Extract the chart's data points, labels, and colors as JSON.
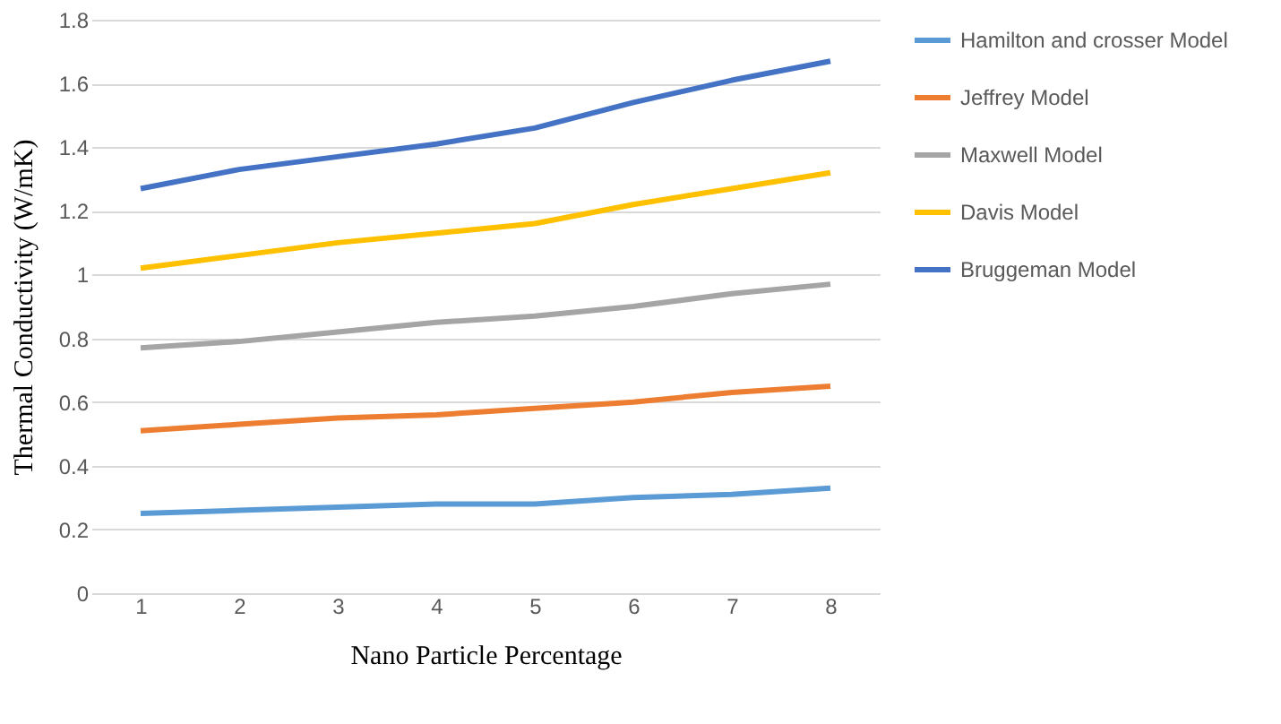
{
  "chart_data": {
    "type": "line",
    "xlabel": "Nano Particle Percentage",
    "ylabel": "Thermal Conductivity (W/mK)",
    "categories": [
      "1",
      "2",
      "3",
      "4",
      "5",
      "6",
      "7",
      "8"
    ],
    "series": [
      {
        "name": "Hamilton and crosser Model",
        "color": "#5b9bd5",
        "values": [
          0.25,
          0.26,
          0.27,
          0.28,
          0.28,
          0.3,
          0.31,
          0.33
        ]
      },
      {
        "name": "Jeffrey Model",
        "color": "#ed7d31",
        "values": [
          0.51,
          0.53,
          0.55,
          0.56,
          0.58,
          0.6,
          0.63,
          0.65
        ]
      },
      {
        "name": "Maxwell Model",
        "color": "#a5a5a5",
        "values": [
          0.77,
          0.79,
          0.82,
          0.85,
          0.87,
          0.9,
          0.94,
          0.97
        ]
      },
      {
        "name": "Davis Model",
        "color": "#ffc000",
        "values": [
          1.02,
          1.06,
          1.1,
          1.13,
          1.16,
          1.22,
          1.27,
          1.32
        ]
      },
      {
        "name": "Bruggeman Model",
        "color": "#4472c4",
        "values": [
          1.27,
          1.33,
          1.37,
          1.41,
          1.46,
          1.54,
          1.61,
          1.67
        ]
      }
    ],
    "ylim": [
      0,
      1.8
    ],
    "yticks": [
      0,
      0.2,
      0.4,
      0.6,
      0.8,
      1,
      1.2,
      1.4,
      1.6,
      1.8
    ],
    "grid": "y",
    "legend": "right",
    "marker": "none",
    "line_style": "solid"
  }
}
